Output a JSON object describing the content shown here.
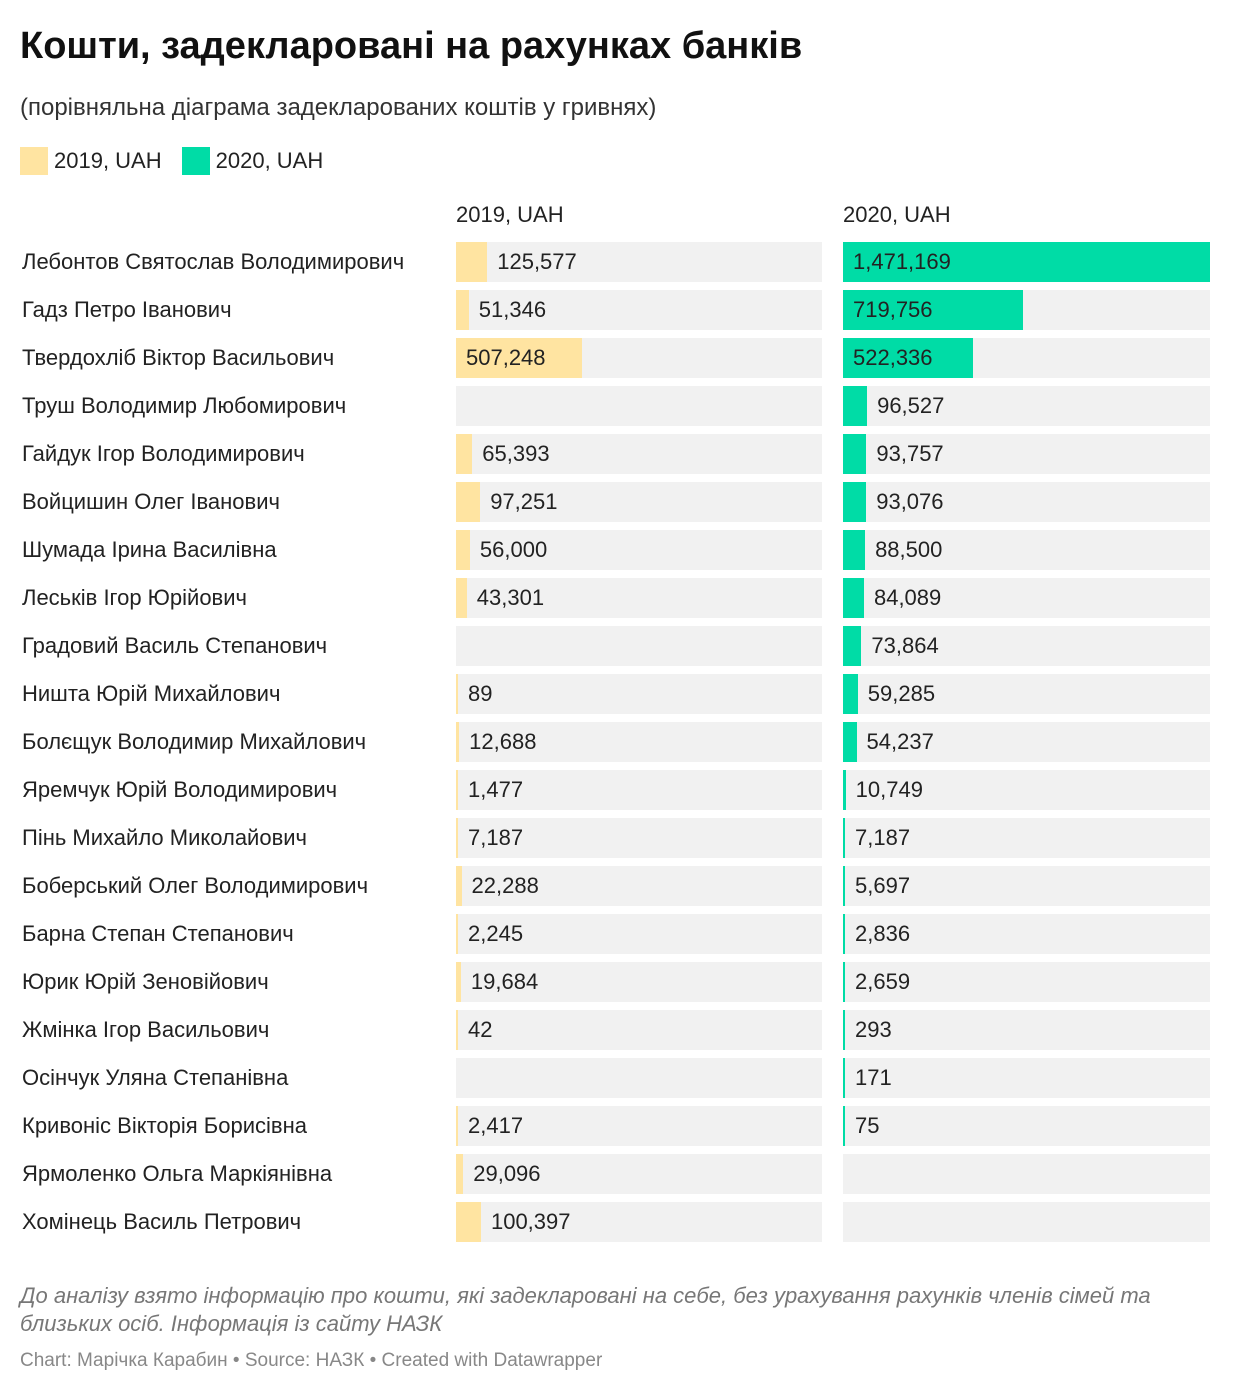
{
  "title": "Кошти, задекларовані на рахунках банків",
  "subtitle": "(порівняльна діаграма задекларованих коштів у гривнях)",
  "legend": [
    {
      "label": "2019, UAH",
      "color": "#ffe4a1"
    },
    {
      "label": "2020, UAH",
      "color": "#00dca6"
    }
  ],
  "chart_data": {
    "type": "bar",
    "orientation": "horizontal",
    "layout": "split-bars",
    "columns": [
      "2019, UAH",
      "2020, UAH"
    ],
    "xlim": [
      0,
      1471169
    ],
    "categories": [
      "Лебонтов Святослав Володимирович",
      "Гадз Петро Іванович",
      "Твердохліб Віктор Васильович",
      "Труш Володимир Любомирович",
      "Гайдук Ігор Володимирович",
      "Войцишин Олег Іванович",
      "Шумада Ірина Василівна",
      "Леськів Ігор Юрійович",
      "Градовий Василь Степанович",
      "Ништа Юрій Михайлович",
      "Болєщук Володимир Михайлович",
      "Яремчук Юрій Володимирович",
      "Пінь Михайло Миколайович",
      "Боберський Олег Володимирович",
      "Барна Степан Степанович",
      "Юрик Юрій Зеновійович",
      "Жмінка Ігор Васильович",
      "Осінчук Уляна Степанівна",
      "Кривоніс Вікторія Борисівна",
      "Ярмоленко Ольга Маркіянівна",
      "Хомінець Василь Петрович"
    ],
    "series": [
      {
        "name": "2019, UAH",
        "color": "#ffe4a1",
        "values": [
          125577,
          51346,
          507248,
          null,
          65393,
          97251,
          56000,
          43301,
          null,
          89,
          12688,
          1477,
          7187,
          22288,
          2245,
          19684,
          42,
          null,
          2417,
          29096,
          100397
        ],
        "labels": [
          "125,577",
          "51,346",
          "507,248",
          "",
          "65,393",
          "97,251",
          "56,000",
          "43,301",
          "",
          "89",
          "12,688",
          "1,477",
          "7,187",
          "22,288",
          "2,245",
          "19,684",
          "42",
          "",
          "2,417",
          "29,096",
          "100,397"
        ]
      },
      {
        "name": "2020, UAH",
        "color": "#00dca6",
        "values": [
          1471169,
          719756,
          522336,
          96527,
          93757,
          93076,
          88500,
          84089,
          73864,
          59285,
          54237,
          10749,
          7187,
          5697,
          2836,
          2659,
          293,
          171,
          75,
          null,
          null
        ],
        "labels": [
          "1,471,169",
          "719,756",
          "522,336",
          "96,527",
          "93,757",
          "93,076",
          "88,500",
          "84,089",
          "73,864",
          "59,285",
          "54,237",
          "10,749",
          "7,187",
          "5,697",
          "2,836",
          "2,659",
          "293",
          "171",
          "75",
          "",
          ""
        ]
      }
    ]
  },
  "notes": "До аналізу взято інформацію про кошти, які задекларовані на себе, без урахування рахунків членів сімей та близьких осіб. Інформація із сайту НАЗК",
  "footer": "Chart: Марічка Карабин • Source: НАЗК • Created with Datawrapper"
}
